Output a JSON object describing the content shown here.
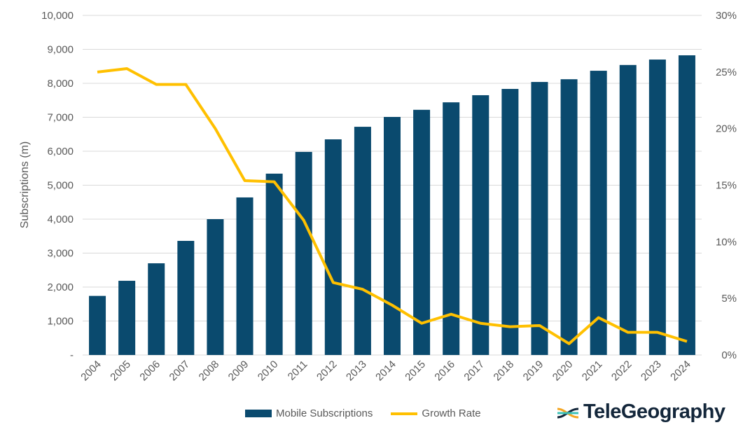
{
  "chart_data": {
    "type": "bar+line",
    "categories": [
      "2004",
      "2005",
      "2006",
      "2007",
      "2008",
      "2009",
      "2010",
      "2011",
      "2012",
      "2013",
      "2014",
      "2015",
      "2016",
      "2017",
      "2018",
      "2019",
      "2020",
      "2021",
      "2022",
      "2023",
      "2024"
    ],
    "series": [
      {
        "name": "Mobile Subscriptions",
        "type": "bar",
        "axis": "left",
        "color": "#0a4a6e",
        "values": [
          1740,
          2185,
          2700,
          3360,
          4000,
          4640,
          5340,
          5980,
          6350,
          6720,
          7010,
          7220,
          7440,
          7650,
          7835,
          8040,
          8120,
          8370,
          8540,
          8700,
          8825
        ]
      },
      {
        "name": "Growth Rate",
        "type": "line",
        "axis": "right",
        "color": "#ffc000",
        "values": [
          25.0,
          25.3,
          23.9,
          23.9,
          20.0,
          15.4,
          15.3,
          11.9,
          6.4,
          5.8,
          4.4,
          2.8,
          3.6,
          2.8,
          2.5,
          2.6,
          1.0,
          3.3,
          2.0,
          2.0,
          1.2
        ]
      }
    ],
    "ylabel": "Subscriptions (m)",
    "ylim": [
      0,
      10000
    ],
    "yticks": [
      "-",
      "1,000",
      "2,000",
      "3,000",
      "4,000",
      "5,000",
      "6,000",
      "7,000",
      "8,000",
      "9,000",
      "10,000"
    ],
    "y2lim": [
      0,
      30
    ],
    "y2ticks": [
      "0%",
      "5%",
      "10%",
      "15%",
      "20%",
      "25%",
      "30%"
    ],
    "grid": true,
    "legend": "bottom"
  },
  "legend": {
    "bar_label": "Mobile Subscriptions",
    "line_label": "Growth Rate"
  },
  "logo": {
    "text": "TeleGeography"
  }
}
